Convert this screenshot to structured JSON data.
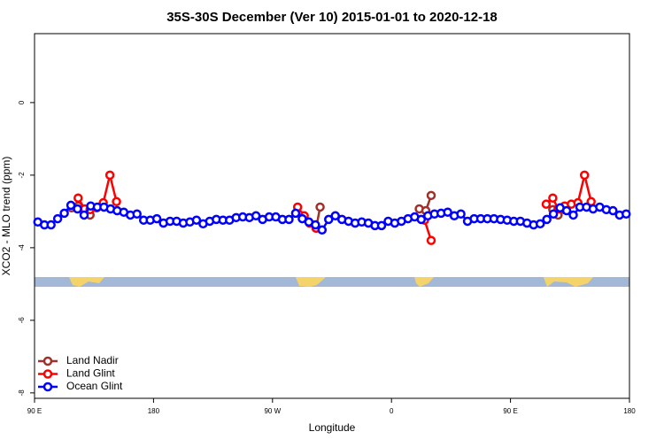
{
  "chart_data": {
    "type": "line",
    "title": "35S-30S December (Ver 10)   2015-01-01 to 2020-12-18",
    "x_label": "Longitude",
    "y_label": "XCO2 - MLO trend (ppm)",
    "xlim": [
      90,
      540
    ],
    "xticks": [
      {
        "value": 90,
        "label": "90 E"
      },
      180,
      {
        "value": 270,
        "label": "90 W"
      },
      0,
      {
        "value": 450,
        "label": "90 E"
      },
      {
        "value": 540,
        "label": "180"
      }
    ],
    "ylim": [
      -8.15,
      1.9
    ],
    "yticks": [
      0,
      -2,
      -4,
      -6,
      -8
    ],
    "legend": "bottom-left",
    "series": [
      {
        "name": "Land Nadir",
        "color": "#a0302a",
        "x": [
          118,
          123,
          128,
          132,
          303,
          306,
          381,
          386,
          390,
          482,
          486,
          491
        ],
        "values": [
          -2.9,
          -2.85,
          -2.95,
          -3.1,
          -3.46,
          -2.88,
          -2.93,
          -2.98,
          -2.56,
          -2.95,
          -3.1,
          -2.95
        ]
      },
      {
        "name": "Land Glint",
        "color": "#ff0000",
        "x": [
          123,
          128,
          132,
          137,
          142,
          147,
          152,
          289,
          294,
          298,
          303,
          385,
          390,
          477,
          482,
          486,
          491,
          496,
          501,
          506,
          511
        ],
        "values": [
          -2.63,
          -2.93,
          -2.95,
          -2.9,
          -2.76,
          -2.0,
          -2.73,
          -2.88,
          -3.12,
          -3.32,
          -3.46,
          -3.24,
          -3.8,
          -2.8,
          -2.63,
          -2.93,
          -2.85,
          -2.8,
          -2.76,
          -2.0,
          -2.73
        ]
      },
      {
        "name": "Ocean Glint",
        "color": "#0000ff",
        "x": [
          92.5,
          97.5,
          102.5,
          107.5,
          112.5,
          117.5,
          122.5,
          127.5,
          132.5,
          137.5,
          142.5,
          147.5,
          152.5,
          157.5,
          162.5,
          167.5,
          172.5,
          177.5,
          182.5,
          187.5,
          192.5,
          197.5,
          202.5,
          207.5,
          212.5,
          217.5,
          222.5,
          227.5,
          232.5,
          237.5,
          242.5,
          247.5,
          252.5,
          257.5,
          262.5,
          267.5,
          272.5,
          277.5,
          282.5,
          287.5,
          292.5,
          297.5,
          302.5,
          307.5,
          312.5,
          317.5,
          322.5,
          327.5,
          332.5,
          337.5,
          342.5,
          347.5,
          352.5,
          357.5,
          362.5,
          367.5,
          372.5,
          377.5,
          382.5,
          387.5,
          392.5,
          397.5,
          402.5,
          407.5,
          412.5,
          417.5,
          422.5,
          427.5,
          432.5,
          437.5,
          442.5,
          447.5,
          452.5,
          457.5,
          462.5,
          467.5,
          472.5,
          477.5,
          482.5,
          487.5,
          492.5,
          497.5,
          502.5,
          507.5,
          512.5,
          517.5,
          522.5,
          527.5,
          532.5,
          537.5
        ],
        "values": [
          -3.29,
          -3.37,
          -3.37,
          -3.2,
          -3.05,
          -2.83,
          -2.93,
          -3.1,
          -2.85,
          -2.88,
          -2.88,
          -2.93,
          -2.98,
          -3.02,
          -3.1,
          -3.07,
          -3.24,
          -3.24,
          -3.2,
          -3.32,
          -3.27,
          -3.27,
          -3.32,
          -3.29,
          -3.24,
          -3.34,
          -3.27,
          -3.22,
          -3.24,
          -3.24,
          -3.17,
          -3.15,
          -3.17,
          -3.12,
          -3.22,
          -3.15,
          -3.15,
          -3.22,
          -3.22,
          -3.05,
          -3.2,
          -3.29,
          -3.37,
          -3.51,
          -3.22,
          -3.12,
          -3.22,
          -3.27,
          -3.32,
          -3.29,
          -3.32,
          -3.39,
          -3.39,
          -3.27,
          -3.32,
          -3.27,
          -3.2,
          -3.15,
          -3.22,
          -3.12,
          -3.07,
          -3.05,
          -3.02,
          -3.12,
          -3.07,
          -3.27,
          -3.2,
          -3.2,
          -3.2,
          -3.2,
          -3.22,
          -3.24,
          -3.27,
          -3.27,
          -3.32,
          -3.37,
          -3.34,
          -3.22,
          -3.07,
          -2.9,
          -2.98,
          -3.1,
          -2.88,
          -2.88,
          -2.93,
          -2.88,
          -2.95,
          -2.98,
          -3.1,
          -3.07
        ]
      }
    ]
  }
}
